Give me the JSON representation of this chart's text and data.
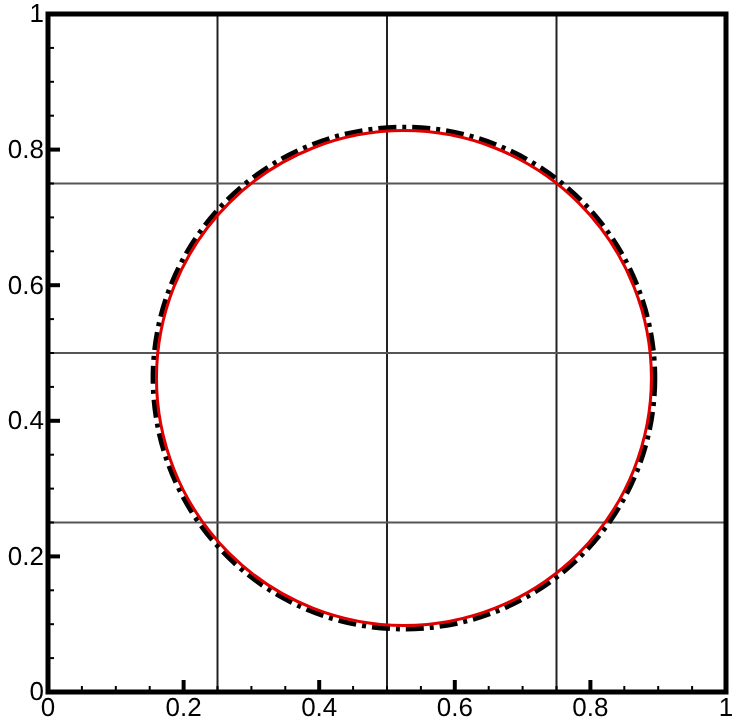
{
  "chart_data": {
    "type": "line",
    "xlim": [
      0,
      1
    ],
    "ylim": [
      0,
      1
    ],
    "xticks": [
      0,
      {
        "value": 0.05,
        "label": null
      },
      {
        "value": 0.1,
        "label": null
      },
      {
        "value": 0.15,
        "label": null
      },
      0.2,
      {
        "value": 0.25,
        "label": null
      },
      {
        "value": 0.3,
        "label": null
      },
      {
        "value": 0.35,
        "label": null
      },
      0.4,
      {
        "value": 0.45,
        "label": null
      },
      {
        "value": 0.5,
        "label": null
      },
      {
        "value": 0.55,
        "label": null
      },
      0.6,
      {
        "value": 0.65,
        "label": null
      },
      {
        "value": 0.7,
        "label": null
      },
      {
        "value": 0.75,
        "label": null
      },
      0.8,
      {
        "value": 0.85,
        "label": null
      },
      {
        "value": 0.9,
        "label": null
      },
      {
        "value": 0.95,
        "label": null
      },
      1
    ],
    "yticks": [
      0,
      {
        "value": 0.05,
        "label": null
      },
      {
        "value": 0.1,
        "label": null
      },
      {
        "value": 0.15,
        "label": null
      },
      0.2,
      {
        "value": 0.25,
        "label": null
      },
      {
        "value": 0.3,
        "label": null
      },
      {
        "value": 0.35,
        "label": null
      },
      0.4,
      {
        "value": 0.45,
        "label": null
      },
      {
        "value": 0.5,
        "label": null
      },
      {
        "value": 0.55,
        "label": null
      },
      0.6,
      {
        "value": 0.65,
        "label": null
      },
      {
        "value": 0.7,
        "label": null
      },
      {
        "value": 0.75,
        "label": null
      },
      0.8,
      {
        "value": 0.85,
        "label": null
      },
      {
        "value": 0.9,
        "label": null
      },
      {
        "value": 0.95,
        "label": null
      },
      1
    ],
    "ref_lines": [
      {
        "axis": "x",
        "value": 0.25,
        "color": "#222222"
      },
      {
        "axis": "x",
        "value": 0.5,
        "color": "#222222"
      },
      {
        "axis": "x",
        "value": 0.75,
        "color": "#222222"
      },
      {
        "axis": "y",
        "value": 0.25,
        "color": "#555555"
      },
      {
        "axis": "y",
        "value": 0.5,
        "color": "#555555"
      },
      {
        "axis": "y",
        "value": 0.75,
        "color": "#555555"
      }
    ]
  }
}
